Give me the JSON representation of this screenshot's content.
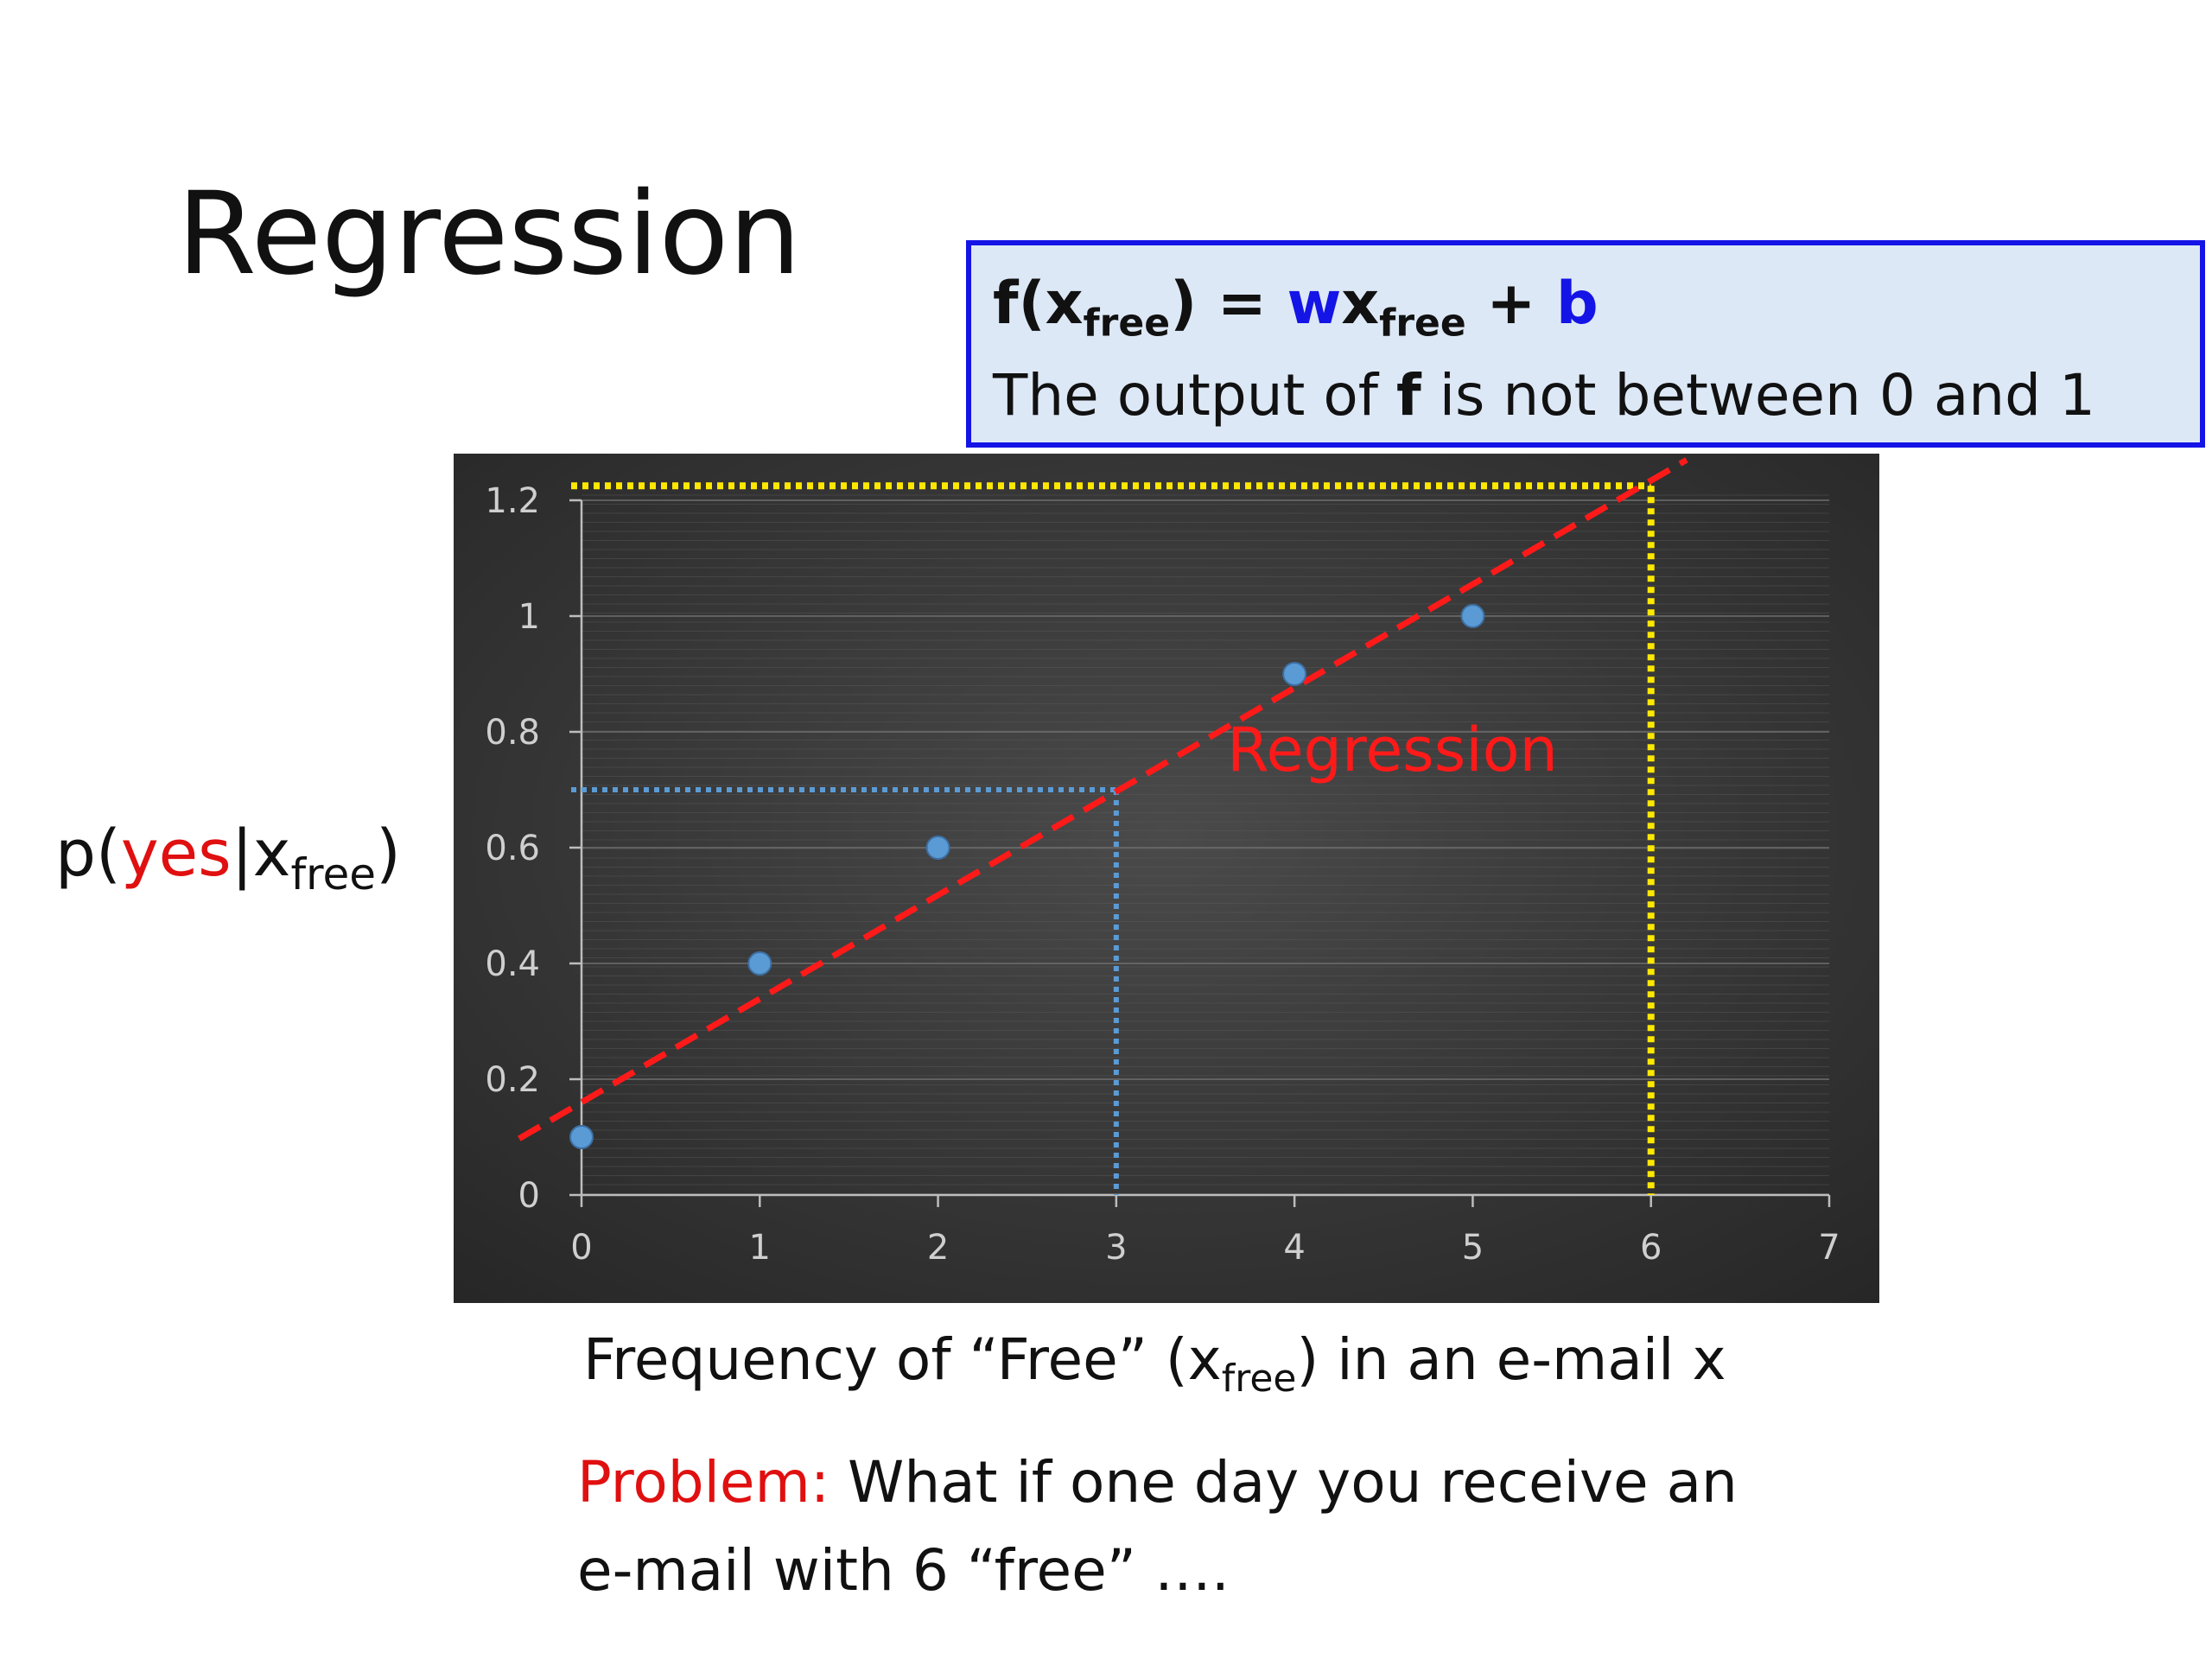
{
  "slide": {
    "title": "Regression"
  },
  "formula": {
    "f_open": "f(x",
    "free1": "free",
    "equals": ") = ",
    "w": "w",
    "x": "x",
    "free2": "free",
    "plus": " + ",
    "b": "b",
    "line2_before": "The output of ",
    "line2_bold": "f",
    "line2_after": " is not between 0 and 1"
  },
  "ylabel": {
    "prefix": "p(",
    "yes": "yes",
    "bar": "|x",
    "sub": "free",
    "suffix": ")"
  },
  "xcaption": {
    "before": "Frequency of “Free” (x",
    "sub": "free",
    "after": ") in an e-mail x"
  },
  "problem": {
    "label": "Problem:",
    "text1": " What if one day you receive an",
    "text2": "e-mail with 6 “free” …."
  },
  "colors": {
    "chart_bg": "#303030",
    "points": "#5b9bd5",
    "regression_line": "#ff1a1a",
    "yellow_guide": "#ffe800",
    "blue_guide": "#5b9bd5"
  },
  "chart_data": {
    "type": "scatter",
    "x": [
      0,
      1,
      2,
      4,
      5
    ],
    "y": [
      0.1,
      0.4,
      0.6,
      0.9,
      1.0
    ],
    "xlim": [
      0,
      7
    ],
    "ylim": [
      0,
      1.2
    ],
    "xticks": [
      "0",
      "1",
      "2",
      "3",
      "4",
      "5",
      "6",
      "7"
    ],
    "yticks": [
      "0",
      "0.2",
      "0.4",
      "0.6",
      "0.8",
      "1",
      "1.2"
    ],
    "regression": {
      "label": "Regression",
      "x_start": -0.35,
      "x_end": 6.2,
      "intercept": 0.16,
      "slope": 0.179
    },
    "guides": [
      {
        "name": "blue",
        "x": 3,
        "y": 0.7
      },
      {
        "name": "yellow",
        "x": 6,
        "y": 1.225
      }
    ],
    "grid": true
  }
}
